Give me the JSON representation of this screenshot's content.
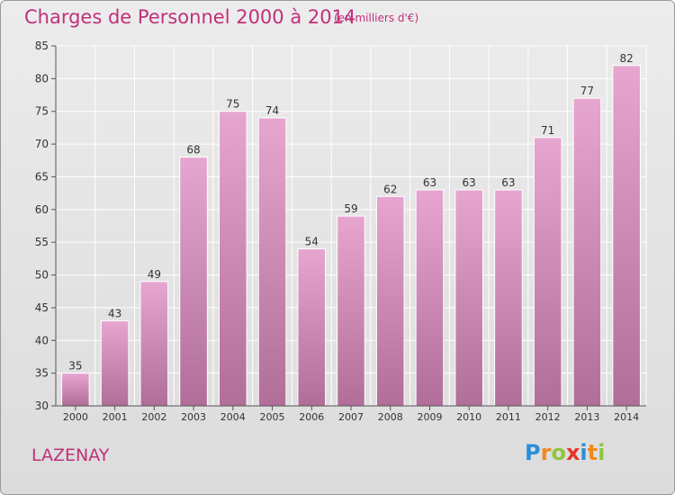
{
  "header": {
    "title": "Charges de Personnel 2000 à 2014",
    "subtitle": "(en milliers d'€)"
  },
  "footer": {
    "town": "LAZENAY",
    "logo_letters": [
      "P",
      "r",
      "o",
      "x",
      "i",
      "t",
      "i"
    ],
    "logo_colors": [
      "#2a8fd6",
      "#f08a1c",
      "#8cc63f",
      "#e8322c",
      "#2a8fd6",
      "#f08a1c",
      "#8cc63f"
    ]
  },
  "colors": {
    "accent": "#c0307a",
    "bar_top": "#e6a6d0",
    "bar_bottom": "#b06e98",
    "grid": "#ffffff",
    "axis": "#555555"
  },
  "chart_data": {
    "type": "bar",
    "categories": [
      "2000",
      "2001",
      "2002",
      "2003",
      "2004",
      "2005",
      "2006",
      "2007",
      "2008",
      "2009",
      "2010",
      "2011",
      "2012",
      "2013",
      "2014"
    ],
    "values": [
      35,
      43,
      49,
      68,
      75,
      74,
      54,
      59,
      62,
      63,
      63,
      63,
      71,
      77,
      82
    ],
    "ylim": [
      30,
      85
    ],
    "yticks": [
      30,
      35,
      40,
      45,
      50,
      55,
      60,
      65,
      70,
      75,
      80,
      85
    ],
    "grid": true,
    "data_labels": true
  }
}
